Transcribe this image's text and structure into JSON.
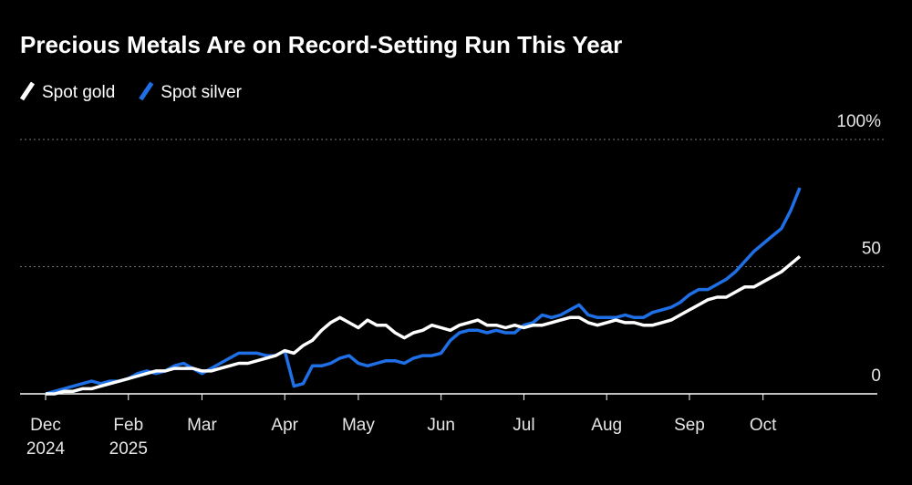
{
  "chart_data": {
    "type": "line",
    "title": "Precious Metals Are on Record-Setting Run This Year",
    "categories": [
      "Dec 2024",
      null,
      null,
      null,
      null,
      null,
      null,
      null,
      null,
      "Feb 2025",
      null,
      null,
      null,
      null,
      null,
      null,
      null,
      "Mar",
      null,
      null,
      null,
      null,
      null,
      null,
      null,
      null,
      "Apr",
      null,
      null,
      null,
      null,
      null,
      null,
      null,
      "May",
      null,
      null,
      null,
      null,
      null,
      null,
      null,
      null,
      "Jun",
      null,
      null,
      null,
      null,
      null,
      null,
      null,
      null,
      "Jul",
      null,
      null,
      null,
      null,
      null,
      null,
      null,
      null,
      "Aug",
      null,
      null,
      null,
      null,
      null,
      null,
      null,
      null,
      "Sep",
      null,
      null,
      null,
      null,
      null,
      null,
      null,
      "Oct",
      null,
      null,
      null,
      null
    ],
    "series": [
      {
        "name": "Spot gold",
        "color": "#ffffff",
        "values": [
          0,
          0,
          1,
          1,
          2,
          2,
          3,
          4,
          5,
          6,
          7,
          8,
          9,
          9,
          10,
          10,
          10,
          9,
          9,
          10,
          11,
          12,
          12,
          13,
          14,
          15,
          17,
          16,
          19,
          21,
          25,
          28,
          30,
          28,
          26,
          29,
          27,
          27,
          24,
          22,
          24,
          25,
          27,
          26,
          25,
          27,
          28,
          29,
          27,
          27,
          26,
          27,
          26,
          27,
          27,
          28,
          29,
          30,
          30,
          28,
          27,
          28,
          29,
          28,
          28,
          27,
          27,
          28,
          29,
          31,
          33,
          35,
          37,
          38,
          38,
          40,
          42,
          42,
          44,
          46,
          48,
          51,
          54
        ]
      },
      {
        "name": "Spot silver",
        "color": "#1f6fe6",
        "values": [
          0,
          1,
          2,
          3,
          4,
          5,
          4,
          5,
          5,
          6,
          8,
          9,
          8,
          9,
          11,
          12,
          10,
          8,
          10,
          12,
          14,
          16,
          16,
          16,
          15,
          15,
          17,
          3,
          4,
          11,
          11,
          12,
          14,
          15,
          12,
          11,
          12,
          13,
          13,
          12,
          14,
          15,
          15,
          16,
          21,
          24,
          25,
          25,
          24,
          25,
          24,
          24,
          27,
          28,
          31,
          30,
          31,
          33,
          35,
          31,
          30,
          30,
          30,
          31,
          30,
          30,
          32,
          33,
          34,
          36,
          39,
          41,
          41,
          43,
          45,
          48,
          52,
          56,
          59,
          62,
          65,
          72,
          81
        ]
      }
    ],
    "ylim": [
      0,
      100
    ],
    "yticks": [
      0,
      50,
      {
        "value": 100,
        "label": "100%"
      }
    ],
    "grid": true
  }
}
